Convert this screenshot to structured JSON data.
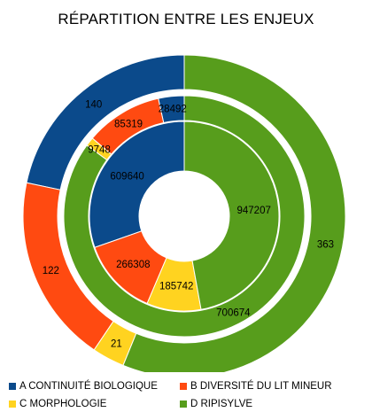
{
  "chart_data": {
    "type": "donut",
    "title": "RÉPARTITION ENTRE LES ENJEUX",
    "categories": [
      "A CONTINUITÉ BIOLOGIQUE",
      "B DIVERSITÉ DU LIT MINEUR",
      "C MORPHOLOGIE",
      "D RIPISYLVE"
    ],
    "colors": [
      "#0b4a8b",
      "#ff4a11",
      "#ffd320",
      "#579d1c"
    ],
    "series": [
      {
        "ring": "inner",
        "values": [
          609640,
          266308,
          185742,
          947207
        ]
      },
      {
        "ring": "middle",
        "values": [
          28492,
          85319,
          9748,
          700674
        ]
      },
      {
        "ring": "outer",
        "values": [
          140,
          122,
          21,
          363
        ]
      }
    ],
    "legend_position": "bottom"
  }
}
